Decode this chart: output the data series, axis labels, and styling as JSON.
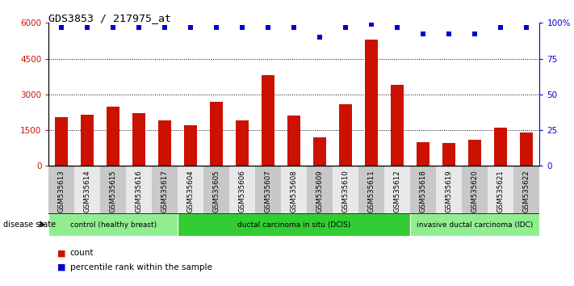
{
  "title": "GDS3853 / 217975_at",
  "samples": [
    "GSM535613",
    "GSM535614",
    "GSM535615",
    "GSM535616",
    "GSM535617",
    "GSM535604",
    "GSM535605",
    "GSM535606",
    "GSM535607",
    "GSM535608",
    "GSM535609",
    "GSM535610",
    "GSM535611",
    "GSM535612",
    "GSM535618",
    "GSM535619",
    "GSM535620",
    "GSM535621",
    "GSM535622"
  ],
  "counts": [
    2050,
    2150,
    2500,
    2200,
    1900,
    1700,
    2700,
    1900,
    3800,
    2100,
    1200,
    2600,
    5300,
    3400,
    1000,
    950,
    1100,
    1600,
    1400
  ],
  "percentiles": [
    97,
    97,
    97,
    97,
    97,
    97,
    97,
    97,
    97,
    97,
    90,
    97,
    99,
    97,
    92,
    92,
    92,
    97,
    97
  ],
  "groups": [
    {
      "label": "control (healthy breast)",
      "start": 0,
      "end": 5,
      "color": "#90ee90"
    },
    {
      "label": "ductal carcinoma in situ (DCIS)",
      "start": 5,
      "end": 14,
      "color": "#32cd32"
    },
    {
      "label": "invasive ductal carcinoma (IDC)",
      "start": 14,
      "end": 19,
      "color": "#90ee90"
    }
  ],
  "bar_color": "#cc1100",
  "dot_color": "#0000cc",
  "ylim_left": [
    0,
    6000
  ],
  "ylim_right": [
    0,
    100
  ],
  "yticks_left": [
    0,
    1500,
    3000,
    4500,
    6000
  ],
  "yticks_right": [
    0,
    25,
    50,
    75,
    100
  ],
  "title_color": "#000000",
  "label_color_left": "#cc1100",
  "label_color_right": "#0000cc",
  "col_bg_even": "#c8c8c8",
  "col_bg_odd": "#e8e8e8"
}
